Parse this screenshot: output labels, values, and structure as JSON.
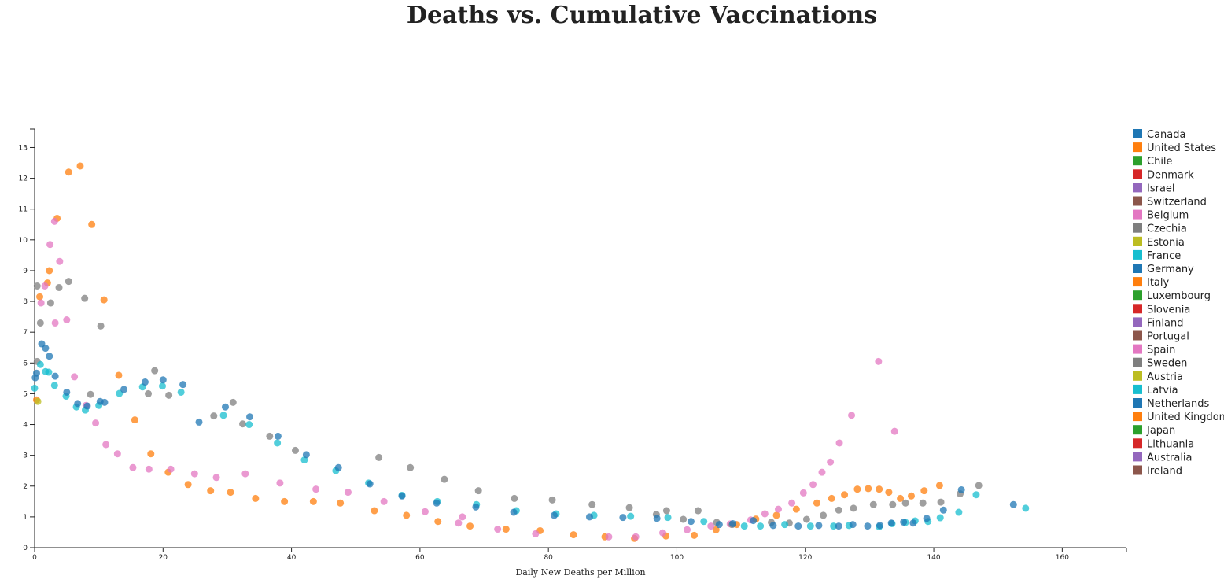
{
  "title": "Deaths vs. Cumulative Vaccinations",
  "chart_data": {
    "type": "scatter",
    "title": "Deaths vs. Cumulative Vaccinations",
    "xlabel": "Daily New Deaths per Million",
    "ylabel": "",
    "xlim": [
      0,
      170
    ],
    "ylim": [
      0,
      13.6
    ],
    "x_ticks": [
      0,
      20,
      40,
      60,
      80,
      100,
      120,
      140,
      160
    ],
    "y_ticks": [
      0,
      1,
      2,
      3,
      4,
      5,
      6,
      7,
      8,
      9,
      10,
      11,
      12,
      13
    ],
    "grid": false,
    "legend_position": "right",
    "legend": [
      {
        "name": "Canada",
        "color": "#1f77b4"
      },
      {
        "name": "United States",
        "color": "#ff7f0e"
      },
      {
        "name": "Chile",
        "color": "#2ca02c"
      },
      {
        "name": "Denmark",
        "color": "#d62728"
      },
      {
        "name": "Israel",
        "color": "#9467bd"
      },
      {
        "name": "Switzerland",
        "color": "#8c564b"
      },
      {
        "name": "Belgium",
        "color": "#e377c2"
      },
      {
        "name": "Czechia",
        "color": "#7f7f7f"
      },
      {
        "name": "Estonia",
        "color": "#bcbd22"
      },
      {
        "name": "France",
        "color": "#17becf"
      },
      {
        "name": "Germany",
        "color": "#1f77b4"
      },
      {
        "name": "Italy",
        "color": "#ff7f0e"
      },
      {
        "name": "Luxembourg",
        "color": "#2ca02c"
      },
      {
        "name": "Slovenia",
        "color": "#d62728"
      },
      {
        "name": "Finland",
        "color": "#9467bd"
      },
      {
        "name": "Portugal",
        "color": "#8c564b"
      },
      {
        "name": "Spain",
        "color": "#e377c2"
      },
      {
        "name": "Sweden",
        "color": "#7f7f7f"
      },
      {
        "name": "Austria",
        "color": "#bcbd22"
      },
      {
        "name": "Latvia",
        "color": "#17becf"
      },
      {
        "name": "Netherlands",
        "color": "#1f77b4"
      },
      {
        "name": "United Kingdom",
        "color": "#ff7f0e"
      },
      {
        "name": "Japan",
        "color": "#2ca02c"
      },
      {
        "name": "Lithuania",
        "color": "#d62728"
      },
      {
        "name": "Australia",
        "color": "#9467bd"
      },
      {
        "name": "Ireland",
        "color": "#8c564b"
      }
    ],
    "series": [
      {
        "color": "#ff7f0e",
        "points": [
          [
            0.3,
            4.8
          ],
          [
            0.8,
            8.15
          ],
          [
            2,
            8.6
          ],
          [
            2.3,
            9
          ],
          [
            3.5,
            10.7
          ],
          [
            5.3,
            12.2
          ],
          [
            7.1,
            12.4
          ],
          [
            8.9,
            10.5
          ],
          [
            10.8,
            8.05
          ],
          [
            13.1,
            5.6
          ],
          [
            15.6,
            4.15
          ],
          [
            18.1,
            3.05
          ],
          [
            20.8,
            2.45
          ],
          [
            23.9,
            2.05
          ],
          [
            27.4,
            1.85
          ],
          [
            30.5,
            1.8
          ],
          [
            34.4,
            1.6
          ],
          [
            38.9,
            1.5
          ],
          [
            43.4,
            1.5
          ],
          [
            47.6,
            1.45
          ],
          [
            52.9,
            1.2
          ],
          [
            57.9,
            1.05
          ],
          [
            62.8,
            0.85
          ],
          [
            67.8,
            0.7
          ],
          [
            73.4,
            0.6
          ],
          [
            78.7,
            0.55
          ],
          [
            83.9,
            0.42
          ],
          [
            88.8,
            0.35
          ],
          [
            93.4,
            0.3
          ],
          [
            98.3,
            0.38
          ],
          [
            102.7,
            0.4
          ],
          [
            106.1,
            0.58
          ],
          [
            109.3,
            0.75
          ],
          [
            112.3,
            0.93
          ],
          [
            115.5,
            1.05
          ],
          [
            118.6,
            1.25
          ],
          [
            121.8,
            1.45
          ],
          [
            124.1,
            1.6
          ],
          [
            126.1,
            1.72
          ],
          [
            128.1,
            1.9
          ],
          [
            129.8,
            1.92
          ],
          [
            131.5,
            1.9
          ],
          [
            133,
            1.8
          ],
          [
            134.8,
            1.6
          ],
          [
            136.5,
            1.68
          ],
          [
            138.5,
            1.85
          ],
          [
            140.9,
            2.02
          ]
        ]
      },
      {
        "color": "#e377c2",
        "points": [
          [
            1,
            7.95
          ],
          [
            1.6,
            8.5
          ],
          [
            2.4,
            9.85
          ],
          [
            3.1,
            10.6
          ],
          [
            3.2,
            7.3
          ],
          [
            3.9,
            9.3
          ],
          [
            5,
            7.4
          ],
          [
            6.2,
            5.55
          ],
          [
            8,
            4.62
          ],
          [
            9.5,
            4.05
          ],
          [
            11.1,
            3.35
          ],
          [
            12.9,
            3.05
          ],
          [
            15.3,
            2.6
          ],
          [
            17.8,
            2.55
          ],
          [
            21.2,
            2.55
          ],
          [
            24.9,
            2.4
          ],
          [
            28.3,
            2.28
          ],
          [
            32.8,
            2.4
          ],
          [
            38.2,
            2.1
          ],
          [
            43.8,
            1.9
          ],
          [
            48.8,
            1.8
          ],
          [
            54.4,
            1.5
          ],
          [
            60.8,
            1.17
          ],
          [
            66.6,
            1
          ],
          [
            66,
            0.8
          ],
          [
            72.1,
            0.6
          ],
          [
            78,
            0.45
          ],
          [
            89.4,
            0.35
          ],
          [
            93.6,
            0.35
          ],
          [
            97.8,
            0.48
          ],
          [
            101.6,
            0.58
          ],
          [
            105.3,
            0.7
          ],
          [
            108.3,
            0.77
          ],
          [
            111.5,
            0.9
          ],
          [
            113.7,
            1.1
          ],
          [
            115.8,
            1.25
          ],
          [
            117.9,
            1.45
          ],
          [
            119.7,
            1.78
          ],
          [
            121.2,
            2.05
          ],
          [
            122.6,
            2.45
          ],
          [
            123.9,
            2.78
          ],
          [
            125.3,
            3.4
          ],
          [
            127.2,
            4.3
          ],
          [
            131.4,
            6.05
          ],
          [
            133.9,
            3.78
          ]
        ]
      },
      {
        "color": "#7f7f7f",
        "points": [
          [
            0.4,
            8.5
          ],
          [
            0.4,
            6.05
          ],
          [
            0.9,
            7.3
          ],
          [
            2.5,
            7.95
          ],
          [
            3.8,
            8.45
          ],
          [
            5.3,
            8.65
          ],
          [
            7.8,
            8.1
          ],
          [
            8.7,
            4.98
          ],
          [
            10.3,
            7.2
          ],
          [
            17.7,
            5
          ],
          [
            18.7,
            5.75
          ],
          [
            20.9,
            4.95
          ],
          [
            27.9,
            4.28
          ],
          [
            30.9,
            4.72
          ],
          [
            32.4,
            4.02
          ],
          [
            36.6,
            3.62
          ],
          [
            40.6,
            3.16
          ],
          [
            53.6,
            2.93
          ],
          [
            58.5,
            2.6
          ],
          [
            63.8,
            2.22
          ],
          [
            69.1,
            1.85
          ],
          [
            74.7,
            1.6
          ],
          [
            80.6,
            1.55
          ],
          [
            86.8,
            1.4
          ],
          [
            92.6,
            1.3
          ],
          [
            96.8,
            1.08
          ],
          [
            98.4,
            1.2
          ],
          [
            101,
            0.92
          ],
          [
            103.3,
            1.2
          ],
          [
            106.2,
            0.82
          ],
          [
            108.6,
            0.75
          ],
          [
            114.7,
            0.82
          ],
          [
            117.5,
            0.8
          ],
          [
            120.2,
            0.92
          ],
          [
            122.8,
            1.05
          ],
          [
            125.2,
            1.22
          ],
          [
            127.5,
            1.28
          ],
          [
            130.6,
            1.4
          ],
          [
            133.6,
            1.4
          ],
          [
            135.6,
            1.45
          ],
          [
            138.3,
            1.45
          ],
          [
            141.1,
            1.48
          ],
          [
            144.1,
            1.75
          ],
          [
            147,
            2.02
          ]
        ]
      },
      {
        "color": "#17becf",
        "points": [
          [
            0,
            5.18
          ],
          [
            0.9,
            5.95
          ],
          [
            1.7,
            5.72
          ],
          [
            2.2,
            5.7
          ],
          [
            3.1,
            5.27
          ],
          [
            4.9,
            4.92
          ],
          [
            6.5,
            4.57
          ],
          [
            7.9,
            4.47
          ],
          [
            10,
            4.62
          ],
          [
            13.2,
            5.01
          ],
          [
            16.8,
            5.22
          ],
          [
            19.9,
            5.25
          ],
          [
            22.8,
            5.05
          ],
          [
            29.4,
            4.3
          ],
          [
            33.4,
            4
          ],
          [
            37.8,
            3.4
          ],
          [
            42,
            2.85
          ],
          [
            46.9,
            2.5
          ],
          [
            52,
            2.1
          ],
          [
            57.2,
            1.7
          ],
          [
            62.7,
            1.5
          ],
          [
            68.8,
            1.4
          ],
          [
            75,
            1.2
          ],
          [
            81.2,
            1.1
          ],
          [
            87.1,
            1.05
          ],
          [
            92.8,
            1.02
          ],
          [
            98.6,
            0.98
          ],
          [
            104.2,
            0.85
          ],
          [
            110.5,
            0.7
          ],
          [
            113,
            0.7
          ],
          [
            116.8,
            0.75
          ],
          [
            120.8,
            0.7
          ],
          [
            124.4,
            0.7
          ],
          [
            126.8,
            0.72
          ],
          [
            131.5,
            0.68
          ],
          [
            133.5,
            0.78
          ],
          [
            135.6,
            0.82
          ],
          [
            137.1,
            0.87
          ],
          [
            139.1,
            0.85
          ],
          [
            141,
            0.97
          ],
          [
            143.9,
            1.15
          ],
          [
            146.6,
            1.72
          ],
          [
            154.3,
            1.28
          ]
        ]
      },
      {
        "color": "#1f77b4",
        "points": [
          [
            0.1,
            5.52
          ],
          [
            0.3,
            5.67
          ],
          [
            1.1,
            6.62
          ],
          [
            1.7,
            6.48
          ],
          [
            2.3,
            6.22
          ],
          [
            3.2,
            5.57
          ],
          [
            5,
            5.05
          ],
          [
            6.7,
            4.68
          ],
          [
            8.2,
            4.6
          ],
          [
            10.2,
            4.75
          ],
          [
            10.9,
            4.72
          ],
          [
            13.9,
            5.14
          ],
          [
            17.2,
            5.38
          ],
          [
            20,
            5.45
          ],
          [
            23.1,
            5.3
          ],
          [
            25.6,
            4.08
          ],
          [
            29.7,
            4.57
          ],
          [
            33.5,
            4.25
          ],
          [
            37.9,
            3.62
          ],
          [
            42.3,
            3.02
          ],
          [
            47.3,
            2.6
          ],
          [
            52.2,
            2.07
          ],
          [
            57.2,
            1.68
          ],
          [
            62.6,
            1.45
          ],
          [
            68.7,
            1.32
          ],
          [
            74.6,
            1.15
          ],
          [
            80.9,
            1.05
          ],
          [
            86.4,
            1
          ],
          [
            91.6,
            0.98
          ],
          [
            96.9,
            0.95
          ],
          [
            102.2,
            0.85
          ],
          [
            106.6,
            0.75
          ],
          [
            108.7,
            0.78
          ],
          [
            111.9,
            0.88
          ],
          [
            115,
            0.72
          ],
          [
            118.9,
            0.7
          ],
          [
            122.1,
            0.72
          ],
          [
            125.2,
            0.7
          ],
          [
            127.4,
            0.75
          ],
          [
            129.7,
            0.7
          ],
          [
            131.6,
            0.72
          ],
          [
            133.4,
            0.8
          ],
          [
            135.3,
            0.83
          ],
          [
            136.8,
            0.8
          ],
          [
            138.9,
            0.95
          ],
          [
            141.5,
            1.22
          ],
          [
            144.3,
            1.88
          ],
          [
            152.4,
            1.4
          ]
        ]
      },
      {
        "color": "#bcbd22",
        "points": [
          [
            0.5,
            4.75
          ]
        ]
      }
    ]
  }
}
